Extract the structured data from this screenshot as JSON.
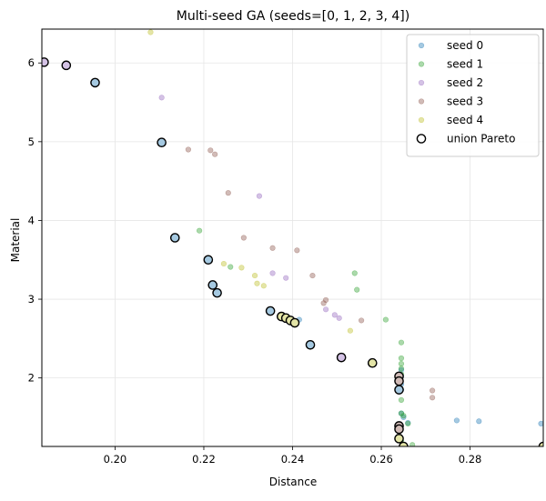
{
  "chart_data": {
    "type": "scatter",
    "title": "Multi-seed GA (seeds=[0, 1, 2, 3, 4])",
    "xlabel": "Distance",
    "ylabel": "Material",
    "xlim": [
      0.1835,
      0.2965
    ],
    "ylim": [
      1.13,
      6.43
    ],
    "xticks": [
      0.2,
      0.22,
      0.24,
      0.26,
      0.28
    ],
    "xtick_labels": [
      "0.20",
      "0.22",
      "0.24",
      "0.26",
      "0.28"
    ],
    "yticks": [
      2,
      3,
      4,
      5,
      6
    ],
    "ytick_labels": [
      "2",
      "3",
      "4",
      "5",
      "6"
    ],
    "grid": true,
    "legend_position": "top-right",
    "series": [
      {
        "name": "seed 0",
        "color": "#1f77b4",
        "points": [
          [
            0.2225,
            3.18
          ],
          [
            0.2415,
            2.74
          ],
          [
            0.2645,
            1.85
          ],
          [
            0.2645,
            1.92
          ],
          [
            0.2645,
            2.02
          ],
          [
            0.2645,
            2.1
          ],
          [
            0.2645,
            1.55
          ],
          [
            0.265,
            1.5
          ],
          [
            0.266,
            1.43
          ],
          [
            0.277,
            1.46
          ],
          [
            0.282,
            1.45
          ],
          [
            0.296,
            1.42
          ],
          [
            0.244,
            2.42
          ]
        ]
      },
      {
        "name": "seed 1",
        "color": "#2ca02c",
        "points": [
          [
            0.219,
            3.87
          ],
          [
            0.226,
            3.41
          ],
          [
            0.254,
            3.33
          ],
          [
            0.2545,
            3.12
          ],
          [
            0.261,
            2.74
          ],
          [
            0.2645,
            2.45
          ],
          [
            0.2645,
            2.25
          ],
          [
            0.2645,
            2.18
          ],
          [
            0.2645,
            2.12
          ],
          [
            0.2645,
            2.05
          ],
          [
            0.2645,
            1.72
          ],
          [
            0.2645,
            1.55
          ],
          [
            0.265,
            1.52
          ],
          [
            0.266,
            1.42
          ],
          [
            0.267,
            1.15
          ],
          [
            0.2645,
            1.2
          ]
        ]
      },
      {
        "name": "seed 2",
        "color": "#9467bd",
        "points": [
          [
            0.2105,
            5.56
          ],
          [
            0.2325,
            4.31
          ],
          [
            0.2355,
            3.33
          ],
          [
            0.2385,
            3.27
          ],
          [
            0.2475,
            2.87
          ],
          [
            0.2495,
            2.8
          ],
          [
            0.2505,
            2.76
          ]
        ]
      },
      {
        "name": "seed 3",
        "color": "#8c564b",
        "points": [
          [
            0.2165,
            4.9
          ],
          [
            0.2215,
            4.89
          ],
          [
            0.2225,
            4.84
          ],
          [
            0.2255,
            4.35
          ],
          [
            0.229,
            3.78
          ],
          [
            0.2355,
            3.65
          ],
          [
            0.241,
            3.62
          ],
          [
            0.2445,
            3.3
          ],
          [
            0.247,
            2.95
          ],
          [
            0.2475,
            2.99
          ],
          [
            0.2555,
            2.73
          ],
          [
            0.2715,
            1.84
          ],
          [
            0.2715,
            1.75
          ]
        ]
      },
      {
        "name": "seed 4",
        "color": "#bcbd22",
        "points": [
          [
            0.208,
            6.39
          ],
          [
            0.2245,
            3.45
          ],
          [
            0.2285,
            3.4
          ],
          [
            0.2315,
            3.3
          ],
          [
            0.232,
            3.2
          ],
          [
            0.2335,
            3.17
          ],
          [
            0.253,
            2.6
          ]
        ]
      }
    ],
    "pareto": {
      "name": "union Pareto",
      "points": [
        {
          "x": 0.184,
          "y": 6.01,
          "seed": "seed 2"
        },
        {
          "x": 0.189,
          "y": 5.97,
          "seed": "seed 2"
        },
        {
          "x": 0.1955,
          "y": 5.75,
          "seed": "seed 0"
        },
        {
          "x": 0.2105,
          "y": 4.99,
          "seed": "seed 0"
        },
        {
          "x": 0.2135,
          "y": 3.78,
          "seed": "seed 0"
        },
        {
          "x": 0.221,
          "y": 3.5,
          "seed": "seed 0"
        },
        {
          "x": 0.222,
          "y": 3.18,
          "seed": "seed 0"
        },
        {
          "x": 0.223,
          "y": 3.08,
          "seed": "seed 0"
        },
        {
          "x": 0.235,
          "y": 2.85,
          "seed": "seed 0"
        },
        {
          "x": 0.2375,
          "y": 2.78,
          "seed": "seed 4"
        },
        {
          "x": 0.2385,
          "y": 2.76,
          "seed": "seed 4"
        },
        {
          "x": 0.2395,
          "y": 2.73,
          "seed": "seed 4"
        },
        {
          "x": 0.2405,
          "y": 2.7,
          "seed": "seed 4"
        },
        {
          "x": 0.244,
          "y": 2.42,
          "seed": "seed 0"
        },
        {
          "x": 0.251,
          "y": 2.26,
          "seed": "seed 2"
        },
        {
          "x": 0.258,
          "y": 2.19,
          "seed": "seed 4"
        },
        {
          "x": 0.264,
          "y": 2.02,
          "seed": "seed 3"
        },
        {
          "x": 0.264,
          "y": 1.96,
          "seed": "seed 3"
        },
        {
          "x": 0.264,
          "y": 1.85,
          "seed": "seed 0"
        },
        {
          "x": 0.264,
          "y": 1.39,
          "seed": "seed 3"
        },
        {
          "x": 0.264,
          "y": 1.35,
          "seed": "seed 3"
        },
        {
          "x": 0.264,
          "y": 1.23,
          "seed": "seed 4"
        },
        {
          "x": 0.265,
          "y": 1.13,
          "seed": "seed 4"
        },
        {
          "x": 0.2965,
          "y": 1.13,
          "seed": "seed 4"
        }
      ]
    }
  }
}
